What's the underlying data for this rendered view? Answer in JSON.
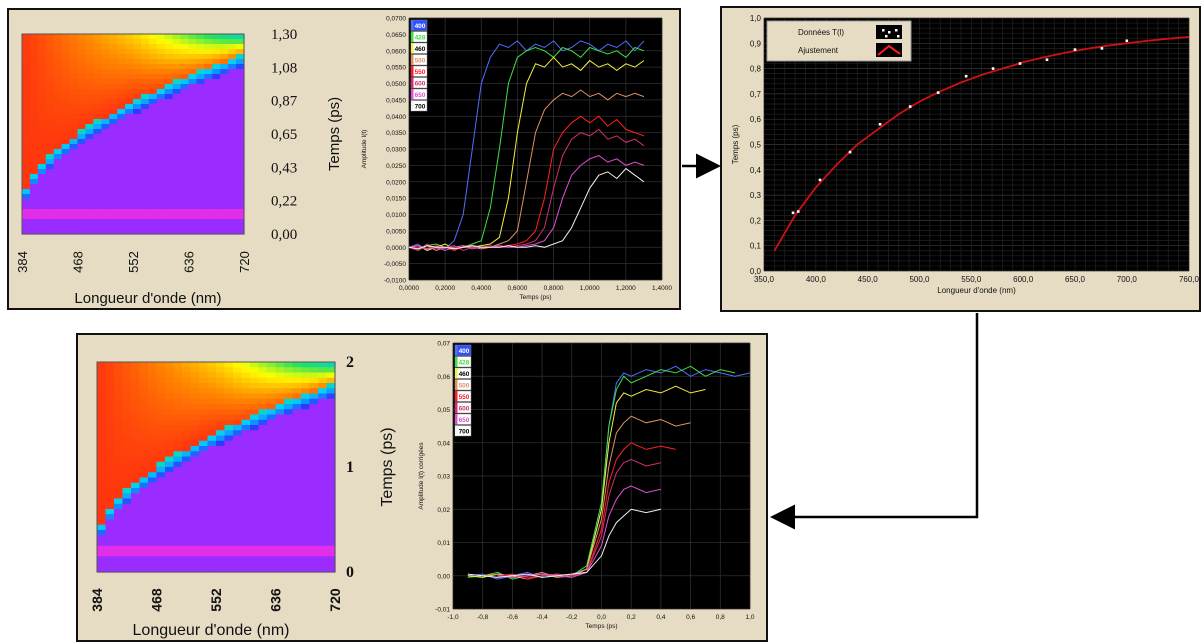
{
  "colors": {
    "panel_bg": "#e6dcc3",
    "plot_bg": "#000000",
    "grid": "#2f2f2f",
    "fit_line": "#d01010",
    "data_point": "#ffffff",
    "arrow": "#000000",
    "map_purple": "#9a2cff",
    "map_magenta": "#e22ee6"
  },
  "chart_data": [
    {
      "id": "map-raw",
      "type": "heatmap",
      "xlabel": "Longueur d'onde (nm)",
      "ylabel": "Temps (ps)",
      "x_ticks": [
        "384",
        "468",
        "552",
        "636",
        "720"
      ],
      "y_ticks": [
        "1,30",
        "1,08",
        "0,87",
        "0,65",
        "0,43",
        "0,22",
        "0,00"
      ],
      "xlim": [
        384,
        720
      ],
      "ylim": [
        0,
        1.3
      ],
      "colorscale": [
        "#9a2cff",
        "#2a3cff",
        "#00d0ff",
        "#20e060",
        "#ffff00",
        "#ff8c00",
        "#ff2a10"
      ]
    },
    {
      "id": "traces-raw",
      "type": "line",
      "xlabel": "Temps (ps)",
      "ylabel": "Amplitude I(t)",
      "xlim": [
        0,
        1.4
      ],
      "ylim": [
        -0.01,
        0.07
      ],
      "x_ticks": [
        "0,0000",
        "0,2000",
        "0,4000",
        "0,6000",
        "0,8000",
        "1,0000",
        "1,2000",
        "1,4000"
      ],
      "y_ticks": [
        "-0,0100",
        "-0,0050",
        "0,0000",
        "0,0050",
        "0,0100",
        "0,0150",
        "0,0200",
        "0,0250",
        "0,0300",
        "0,0350",
        "0,0400",
        "0,0450",
        "0,0500",
        "0,0550",
        "0,0600",
        "0,0650",
        "0,0700"
      ],
      "series": [
        {
          "name": "400",
          "color": "#4f6fff",
          "x": [
            0,
            0.05,
            0.1,
            0.15,
            0.2,
            0.25,
            0.3,
            0.35,
            0.4,
            0.45,
            0.5,
            0.55,
            0.6,
            0.65,
            0.7,
            0.75,
            0.8,
            0.85,
            0.9,
            0.95,
            1.0,
            1.05,
            1.1,
            1.15,
            1.2,
            1.25,
            1.3
          ],
          "y": [
            0.0,
            0.001,
            -0.001,
            0.0005,
            -0.0005,
            0.002,
            0.01,
            0.03,
            0.05,
            0.058,
            0.062,
            0.061,
            0.063,
            0.06,
            0.062,
            0.061,
            0.063,
            0.06,
            0.061,
            0.063,
            0.062,
            0.06,
            0.062,
            0.061,
            0.063,
            0.06,
            0.063
          ]
        },
        {
          "name": "428",
          "color": "#40e040",
          "x": [
            0,
            0.05,
            0.1,
            0.15,
            0.2,
            0.25,
            0.3,
            0.35,
            0.4,
            0.45,
            0.5,
            0.55,
            0.6,
            0.65,
            0.7,
            0.75,
            0.8,
            0.85,
            0.9,
            0.95,
            1.0,
            1.05,
            1.1,
            1.15,
            1.2,
            1.25,
            1.3
          ],
          "y": [
            0.0,
            -0.001,
            0.0005,
            0.001,
            0.0,
            -0.0005,
            0.0,
            0.001,
            0.002,
            0.012,
            0.03,
            0.05,
            0.058,
            0.06,
            0.061,
            0.06,
            0.058,
            0.061,
            0.06,
            0.058,
            0.061,
            0.06,
            0.059,
            0.06,
            0.058,
            0.061,
            0.06
          ]
        },
        {
          "name": "460",
          "color": "#f0f040",
          "x": [
            0,
            0.05,
            0.1,
            0.15,
            0.2,
            0.25,
            0.3,
            0.35,
            0.4,
            0.45,
            0.5,
            0.55,
            0.6,
            0.65,
            0.7,
            0.75,
            0.8,
            0.85,
            0.9,
            0.95,
            1.0,
            1.05,
            1.1,
            1.15,
            1.2,
            1.25,
            1.3
          ],
          "y": [
            0.0,
            0.0005,
            -0.001,
            0.0,
            0.001,
            -0.0005,
            0.0,
            0.0,
            0.0005,
            0.001,
            0.003,
            0.015,
            0.035,
            0.05,
            0.056,
            0.055,
            0.058,
            0.055,
            0.056,
            0.054,
            0.057,
            0.055,
            0.056,
            0.054,
            0.056,
            0.055,
            0.057
          ]
        },
        {
          "name": "500",
          "color": "#e09060",
          "x": [
            0,
            0.05,
            0.1,
            0.15,
            0.2,
            0.25,
            0.3,
            0.35,
            0.4,
            0.45,
            0.5,
            0.55,
            0.6,
            0.65,
            0.7,
            0.75,
            0.8,
            0.85,
            0.9,
            0.95,
            1.0,
            1.05,
            1.1,
            1.15,
            1.2,
            1.25,
            1.3
          ],
          "y": [
            0.0,
            -0.0005,
            0.0005,
            -0.001,
            0.0,
            0.0,
            0.0005,
            0.0,
            -0.0005,
            0.0,
            0.001,
            0.002,
            0.005,
            0.02,
            0.035,
            0.042,
            0.045,
            0.047,
            0.046,
            0.048,
            0.046,
            0.047,
            0.045,
            0.047,
            0.046,
            0.047,
            0.046
          ]
        },
        {
          "name": "550",
          "color": "#ff2020",
          "x": [
            0,
            0.05,
            0.1,
            0.15,
            0.2,
            0.25,
            0.3,
            0.35,
            0.4,
            0.45,
            0.5,
            0.55,
            0.6,
            0.65,
            0.7,
            0.75,
            0.8,
            0.85,
            0.9,
            0.95,
            1.0,
            1.05,
            1.1,
            1.15,
            1.2,
            1.25,
            1.3
          ],
          "y": [
            0.0,
            0.0,
            -0.0005,
            0.0005,
            0.0,
            -0.001,
            0.0,
            0.0005,
            0.0,
            0.0,
            0.0,
            0.0005,
            0.001,
            0.002,
            0.005,
            0.015,
            0.03,
            0.035,
            0.038,
            0.04,
            0.038,
            0.04,
            0.037,
            0.039,
            0.036,
            0.035,
            0.034
          ]
        },
        {
          "name": "600",
          "color": "#d03070",
          "x": [
            0,
            0.05,
            0.1,
            0.15,
            0.2,
            0.25,
            0.3,
            0.35,
            0.4,
            0.45,
            0.5,
            0.55,
            0.6,
            0.65,
            0.7,
            0.75,
            0.8,
            0.85,
            0.9,
            0.95,
            1.0,
            1.05,
            1.1,
            1.15,
            1.2,
            1.25,
            1.3
          ],
          "y": [
            0.0,
            -0.001,
            0.001,
            -0.0005,
            0.0,
            0.0005,
            -0.001,
            0.0,
            0.0,
            0.0005,
            0.0,
            0.0,
            0.0005,
            0.001,
            0.002,
            0.006,
            0.018,
            0.028,
            0.033,
            0.035,
            0.034,
            0.036,
            0.033,
            0.034,
            0.032,
            0.033,
            0.031
          ]
        },
        {
          "name": "650",
          "color": "#e050d0",
          "x": [
            0,
            0.05,
            0.1,
            0.15,
            0.2,
            0.25,
            0.3,
            0.35,
            0.4,
            0.45,
            0.5,
            0.55,
            0.6,
            0.65,
            0.7,
            0.75,
            0.8,
            0.85,
            0.9,
            0.95,
            1.0,
            1.05,
            1.1,
            1.15,
            1.2,
            1.25,
            1.3
          ],
          "y": [
            0.0,
            0.0005,
            -0.0005,
            0.0,
            -0.001,
            0.0,
            0.0005,
            -0.0005,
            0.0,
            0.0,
            0.0005,
            0.0,
            0.0,
            0.0005,
            0.001,
            0.002,
            0.006,
            0.015,
            0.022,
            0.025,
            0.027,
            0.028,
            0.026,
            0.027,
            0.025,
            0.026,
            0.025
          ]
        },
        {
          "name": "700",
          "color": "#f0f0f0",
          "x": [
            0,
            0.05,
            0.1,
            0.15,
            0.2,
            0.25,
            0.3,
            0.35,
            0.4,
            0.45,
            0.5,
            0.55,
            0.6,
            0.65,
            0.7,
            0.75,
            0.8,
            0.85,
            0.9,
            0.95,
            1.0,
            1.05,
            1.1,
            1.15,
            1.2,
            1.25,
            1.3
          ],
          "y": [
            0.0,
            -0.0005,
            0.0005,
            0.0,
            0.0,
            -0.0005,
            0.0,
            0.0005,
            0.0,
            0.0,
            0.0,
            0.0005,
            0.0,
            0.0,
            0.0005,
            0.0,
            0.001,
            0.002,
            0.006,
            0.012,
            0.018,
            0.022,
            0.023,
            0.021,
            0.024,
            0.022,
            0.02
          ]
        }
      ]
    },
    {
      "id": "fit",
      "type": "scatter",
      "xlabel": "Longueur d'onde (nm)",
      "ylabel": "Temps (ps)",
      "xlim": [
        350,
        760
      ],
      "ylim": [
        0,
        1
      ],
      "x_ticks": [
        "350,0",
        "400,0",
        "450,0",
        "500,0",
        "550,0",
        "600,0",
        "650,0",
        "700,0",
        "760,0"
      ],
      "y_ticks": [
        "0,0",
        "0,1",
        "0,2",
        "0,3",
        "0,4",
        "0,5",
        "0,6",
        "0,7",
        "0,8",
        "0,9",
        "1,0"
      ],
      "legend": [
        "Données T(l)",
        "Ajustement"
      ],
      "points": {
        "x": [
          378,
          383,
          404,
          433,
          462,
          491,
          518,
          545,
          571,
          597,
          623,
          650,
          676,
          700
        ],
        "y": [
          0.23,
          0.235,
          0.36,
          0.47,
          0.58,
          0.65,
          0.705,
          0.77,
          0.8,
          0.82,
          0.835,
          0.875,
          0.88,
          0.91
        ]
      },
      "fit_curve": {
        "x": [
          360,
          380,
          400,
          420,
          440,
          460,
          480,
          500,
          520,
          540,
          560,
          580,
          600,
          620,
          640,
          660,
          680,
          700,
          720,
          740,
          760
        ],
        "y": [
          0.08,
          0.22,
          0.33,
          0.42,
          0.5,
          0.56,
          0.62,
          0.67,
          0.71,
          0.745,
          0.775,
          0.8,
          0.825,
          0.845,
          0.862,
          0.877,
          0.89,
          0.9,
          0.91,
          0.918,
          0.925
        ]
      }
    },
    {
      "id": "map-corrected",
      "type": "heatmap",
      "xlabel": "Longueur d'onde (nm)",
      "ylabel": "Temps (ps)",
      "x_ticks": [
        "384",
        "468",
        "552",
        "636",
        "720"
      ],
      "y_ticks": [
        "2",
        "1",
        "0"
      ],
      "xlim": [
        384,
        720
      ],
      "ylim": [
        0,
        2
      ],
      "colorscale": [
        "#9a2cff",
        "#2a3cff",
        "#00d0ff",
        "#20e060",
        "#ffff00",
        "#ff8c00",
        "#ff2a10"
      ]
    },
    {
      "id": "traces-corrected",
      "type": "line",
      "xlabel": "Temps (ps)",
      "ylabel": "Amplitude I(t) corrigées",
      "xlim": [
        -1,
        1
      ],
      "ylim": [
        -0.01,
        0.07
      ],
      "x_ticks": [
        "-1,0",
        "-0,8",
        "-0,6",
        "-0,4",
        "-0,2",
        "0,0",
        "0,2",
        "0,4",
        "0,6",
        "0,8",
        "1,0"
      ],
      "y_ticks": [
        "-0,01",
        "0,00",
        "0,01",
        "0,02",
        "0,03",
        "0,04",
        "0,05",
        "0,06",
        "0,07"
      ],
      "series": [
        {
          "name": "400",
          "color": "#4f6fff",
          "x": [
            -0.9,
            -0.8,
            -0.7,
            -0.6,
            -0.5,
            -0.4,
            -0.3,
            -0.2,
            -0.1,
            0.0,
            0.05,
            0.1,
            0.15,
            0.2,
            0.3,
            0.4,
            0.5,
            0.6,
            0.7,
            0.8,
            0.9,
            1.0
          ],
          "y": [
            0.0,
            0.0005,
            -0.001,
            0.0,
            0.001,
            -0.0005,
            0.0,
            0.0005,
            0.002,
            0.02,
            0.045,
            0.058,
            0.061,
            0.06,
            0.062,
            0.061,
            0.063,
            0.06,
            0.062,
            0.061,
            0.06,
            0.061
          ]
        },
        {
          "name": "428",
          "color": "#40e040",
          "x": [
            -0.9,
            -0.8,
            -0.7,
            -0.6,
            -0.5,
            -0.4,
            -0.3,
            -0.2,
            -0.1,
            0.0,
            0.05,
            0.1,
            0.15,
            0.2,
            0.3,
            0.4,
            0.5,
            0.6,
            0.7,
            0.8,
            0.9
          ],
          "y": [
            -0.0005,
            0.0,
            0.001,
            -0.001,
            0.0,
            0.0005,
            -0.0005,
            0.0,
            0.003,
            0.022,
            0.045,
            0.056,
            0.06,
            0.058,
            0.06,
            0.062,
            0.061,
            0.063,
            0.06,
            0.062,
            0.061
          ]
        },
        {
          "name": "460",
          "color": "#f0f040",
          "x": [
            -0.9,
            -0.8,
            -0.7,
            -0.6,
            -0.5,
            -0.4,
            -0.3,
            -0.2,
            -0.1,
            0.0,
            0.05,
            0.1,
            0.15,
            0.2,
            0.3,
            0.4,
            0.5,
            0.6,
            0.7
          ],
          "y": [
            0.0,
            -0.0005,
            0.0005,
            0.0,
            -0.001,
            0.0,
            0.0005,
            0.0,
            0.002,
            0.02,
            0.04,
            0.052,
            0.055,
            0.054,
            0.056,
            0.055,
            0.057,
            0.055,
            0.056
          ]
        },
        {
          "name": "500",
          "color": "#e09060",
          "x": [
            -0.8,
            -0.7,
            -0.6,
            -0.5,
            -0.4,
            -0.3,
            -0.2,
            -0.1,
            0.0,
            0.05,
            0.1,
            0.15,
            0.2,
            0.3,
            0.4,
            0.5,
            0.6
          ],
          "y": [
            0.0,
            0.0005,
            -0.0005,
            0.0,
            0.001,
            -0.0005,
            0.0,
            0.002,
            0.017,
            0.033,
            0.043,
            0.046,
            0.048,
            0.046,
            0.047,
            0.045,
            0.046
          ]
        },
        {
          "name": "550",
          "color": "#ff2020",
          "x": [
            -0.8,
            -0.7,
            -0.6,
            -0.5,
            -0.4,
            -0.3,
            -0.2,
            -0.1,
            0.0,
            0.05,
            0.1,
            0.15,
            0.2,
            0.3,
            0.4,
            0.5
          ],
          "y": [
            0.0,
            -0.0005,
            0.0005,
            -0.001,
            0.0,
            0.0005,
            0.0,
            0.001,
            0.014,
            0.028,
            0.035,
            0.038,
            0.04,
            0.038,
            0.039,
            0.038
          ]
        },
        {
          "name": "600",
          "color": "#d03070",
          "x": [
            -0.7,
            -0.6,
            -0.5,
            -0.4,
            -0.3,
            -0.2,
            -0.1,
            0.0,
            0.05,
            0.1,
            0.15,
            0.2,
            0.3,
            0.4
          ],
          "y": [
            0.0,
            0.0005,
            -0.0005,
            0.0,
            0.0005,
            0.0,
            0.001,
            0.012,
            0.024,
            0.031,
            0.034,
            0.035,
            0.033,
            0.034
          ]
        },
        {
          "name": "650",
          "color": "#e050d0",
          "x": [
            -0.7,
            -0.6,
            -0.5,
            -0.4,
            -0.3,
            -0.2,
            -0.1,
            0.0,
            0.05,
            0.1,
            0.15,
            0.2,
            0.3,
            0.4
          ],
          "y": [
            0.0,
            -0.0005,
            0.0,
            0.0005,
            0.0,
            -0.0005,
            0.001,
            0.009,
            0.018,
            0.023,
            0.026,
            0.027,
            0.025,
            0.026
          ]
        },
        {
          "name": "700",
          "color": "#f0f0f0",
          "x": [
            -0.9,
            -0.8,
            -0.7,
            -0.6,
            -0.5,
            -0.4,
            -0.3,
            -0.2,
            -0.1,
            0.0,
            0.05,
            0.1,
            0.15,
            0.2,
            0.3,
            0.4
          ],
          "y": [
            0.0005,
            0.0,
            -0.0005,
            0.0,
            0.0005,
            -0.0005,
            0.0,
            0.0005,
            0.001,
            0.006,
            0.012,
            0.016,
            0.018,
            0.02,
            0.019,
            0.02
          ]
        }
      ]
    }
  ]
}
